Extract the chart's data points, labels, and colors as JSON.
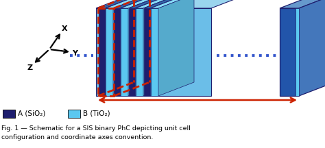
{
  "fig_width": 4.74,
  "fig_height": 2.16,
  "dpi": 100,
  "bg_color": "#ffffff",
  "dark_blue": "#1e1e6e",
  "light_blue": "#5bc8f0",
  "mid_blue": "#2255aa",
  "top_blue": "#88ccee",
  "side_blue": "#4488cc",
  "red_color": "#cc2200",
  "dotted_blue": "#3355cc",
  "caption_line1": "Fig. 1 — Schematic for a SIS binary PhC depicting unit cell",
  "caption_line2": "configuration and coordinate axes convention.",
  "legend_A": "A (SiO₂)",
  "legend_B": "B (TiO₂)"
}
